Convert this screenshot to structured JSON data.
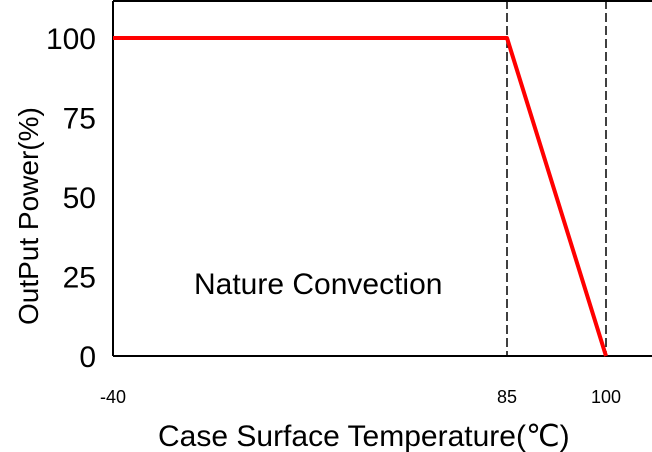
{
  "chart_data": {
    "type": "line",
    "title": "",
    "xlabel": "Case Surface Temperature(℃)",
    "ylabel": "OutPut Power(%)",
    "x_ticks": [
      {
        "value": -40,
        "label": "-40"
      },
      {
        "value": 85,
        "label": "85"
      },
      {
        "value": 100,
        "label": "100"
      }
    ],
    "y_ticks": [
      {
        "value": 0,
        "label": "0"
      },
      {
        "value": 25,
        "label": "25"
      },
      {
        "value": 50,
        "label": "50"
      },
      {
        "value": 75,
        "label": "75"
      },
      {
        "value": 100,
        "label": "100"
      }
    ],
    "series": [
      {
        "color": "#ff0000",
        "points": [
          {
            "x": -40,
            "y": 100
          },
          {
            "x": 85,
            "y": 100
          },
          {
            "x": 100,
            "y": 0
          }
        ]
      }
    ],
    "reference_lines": [
      {
        "axis": "x",
        "value": 85,
        "style": "dashed"
      },
      {
        "axis": "x",
        "value": 100,
        "style": "dashed"
      }
    ],
    "annotations": [
      {
        "text": "Nature Convection"
      }
    ],
    "grid": false
  }
}
